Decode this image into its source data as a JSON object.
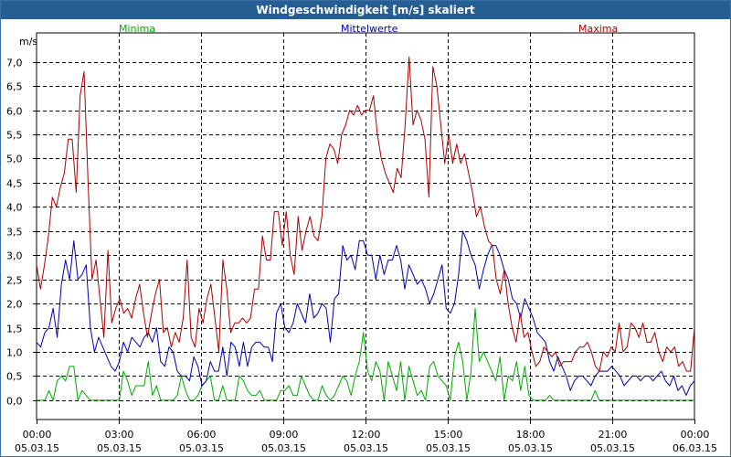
{
  "chart_data": {
    "type": "line",
    "title": "Windgeschwindigkeit [m/s] skaliert",
    "ylabel": "m/s",
    "xlabel": "",
    "ylim": [
      -0.4,
      7.6
    ],
    "yticks": [
      0.0,
      0.5,
      1.0,
      1.5,
      2.0,
      2.5,
      3.0,
      3.5,
      4.0,
      4.5,
      5.0,
      5.5,
      6.0,
      6.5,
      7.0
    ],
    "ytick_labels": [
      "0,0",
      "0,5",
      "1,0",
      "1,5",
      "2,0",
      "2,5",
      "3,0",
      "3,5",
      "4,0",
      "4,5",
      "5,0",
      "5,5",
      "6,0",
      "6,5",
      "7,0"
    ],
    "xlim": [
      0,
      24
    ],
    "xticks": [
      {
        "hour": 0,
        "time": "00:00",
        "date": "05.03.15"
      },
      {
        "hour": 3,
        "time": "03:00",
        "date": "05.03.15"
      },
      {
        "hour": 6,
        "time": "06:00",
        "date": "05.03.15"
      },
      {
        "hour": 9,
        "time": "09:00",
        "date": "05.03.15"
      },
      {
        "hour": 12,
        "time": "12:00",
        "date": "05.03.15"
      },
      {
        "hour": 15,
        "time": "15:00",
        "date": "05.03.15"
      },
      {
        "hour": 18,
        "time": "18:00",
        "date": "05.03.15"
      },
      {
        "hour": 21,
        "time": "21:00",
        "date": "05.03.15"
      },
      {
        "hour": 24,
        "time": "00:00",
        "date": "06.03.15"
      }
    ],
    "grid": true,
    "series": [
      {
        "name": "Minima",
        "color": "#00aa00",
        "values": [
          0.0,
          0.0,
          0.0,
          0.2,
          0.0,
          0.4,
          0.5,
          0.4,
          0.7,
          0.7,
          0.0,
          0.2,
          0.1,
          0.0,
          0.0,
          0.0,
          0.0,
          0.0,
          0.0,
          0.0,
          0.0,
          0.6,
          0.4,
          0.1,
          0.3,
          0.3,
          0.3,
          0.8,
          0.1,
          0.3,
          0.0,
          0.0,
          0.0,
          0.0,
          0.1,
          0.5,
          0.2,
          0.0,
          0.0,
          0.1,
          0.3,
          0.4,
          0.5,
          0.0,
          0.0,
          0.3,
          0.0,
          0.0,
          0.0,
          0.5,
          0.4,
          0.2,
          0.1,
          0.1,
          0.2,
          0.0,
          0.0,
          0.0,
          0.0,
          0.2,
          0.2,
          0.3,
          0.1,
          0.1,
          0.5,
          0.3,
          0.1,
          0.0,
          0.0,
          0.3,
          0.1,
          0.0,
          0.1,
          0.3,
          0.5,
          0.4,
          0.1,
          0.5,
          0.8,
          1.4,
          0.6,
          0.4,
          0.8,
          0.6,
          0.0,
          0.8,
          0.5,
          0.2,
          0.8,
          0.0,
          0.7,
          0.4,
          0.1,
          0.2,
          0.0,
          0.7,
          0.8,
          0.5,
          0.4,
          0.3,
          0.0,
          0.9,
          1.2,
          0.8,
          0.0,
          0.6,
          1.9,
          0.8,
          1.0,
          0.8,
          0.6,
          0.4,
          0.9,
          0.0,
          0.5,
          0.4,
          0.8,
          0.2,
          0.7,
          0.1,
          0.0,
          0.0,
          0.0,
          0.0,
          0.1,
          0.0,
          0.0,
          0.0,
          0.0,
          0.0,
          0.0,
          0.0,
          0.0,
          0.0,
          0.0,
          0.2,
          0.0,
          0.0,
          0.0,
          0.0,
          0.0,
          0.0,
          0.0,
          0.0,
          0.0,
          0.0,
          0.0,
          0.0,
          0.0,
          0.0,
          0.0,
          0.0,
          0.0,
          0.0,
          0.0,
          0.0,
          0.0,
          0.0,
          0.0,
          0.0
        ]
      },
      {
        "name": "Mittelwerte",
        "color": "#0000aa",
        "values": [
          1.2,
          1.1,
          1.4,
          1.5,
          1.9,
          1.3,
          2.4,
          2.9,
          2.5,
          3.3,
          2.5,
          2.6,
          2.8,
          1.5,
          1.0,
          1.3,
          1.1,
          0.9,
          0.7,
          0.6,
          0.8,
          1.2,
          1.0,
          1.3,
          1.2,
          1.1,
          1.3,
          1.4,
          1.2,
          1.5,
          0.8,
          0.7,
          1.1,
          1.0,
          0.6,
          0.5,
          0.5,
          0.4,
          0.9,
          0.7,
          0.3,
          0.4,
          0.8,
          0.6,
          0.6,
          1.1,
          0.5,
          1.2,
          1.1,
          0.7,
          1.2,
          0.7,
          1.1,
          1.2,
          1.2,
          1.1,
          1.1,
          0.8,
          1.8,
          2.0,
          1.5,
          1.4,
          1.6,
          2.0,
          1.8,
          1.6,
          2.2,
          1.7,
          1.8,
          2.0,
          1.9,
          1.2,
          2.1,
          2.2,
          3.2,
          2.9,
          3.0,
          2.7,
          3.3,
          3.3,
          3.0,
          3.0,
          2.5,
          3.0,
          2.6,
          2.9,
          2.9,
          3.2,
          2.9,
          2.3,
          2.8,
          2.6,
          2.4,
          2.5,
          2.3,
          2.0,
          2.2,
          2.5,
          2.8,
          1.9,
          1.8,
          2.0,
          2.6,
          3.5,
          3.3,
          3.0,
          2.8,
          2.3,
          2.7,
          3.0,
          3.2,
          3.2,
          3.0,
          2.7,
          2.5,
          2.1,
          2.0,
          1.7,
          2.1,
          1.9,
          1.7,
          1.4,
          1.3,
          1.2,
          0.8,
          0.6,
          0.9,
          0.7,
          0.5,
          0.2,
          0.4,
          0.5,
          0.5,
          0.4,
          0.3,
          0.5,
          0.6,
          0.6,
          0.6,
          0.7,
          0.6,
          0.5,
          0.3,
          0.4,
          0.5,
          0.5,
          0.4,
          0.5,
          0.5,
          0.4,
          0.5,
          0.6,
          0.4,
          0.3,
          0.5,
          0.2,
          0.3,
          0.1,
          0.3,
          0.4
        ]
      },
      {
        "name": "Maxima",
        "color": "#aa0000",
        "values": [
          2.8,
          2.3,
          2.8,
          3.4,
          4.2,
          4.0,
          4.4,
          4.7,
          5.4,
          5.4,
          4.3,
          6.3,
          6.8,
          4.5,
          2.5,
          2.9,
          2.1,
          1.3,
          3.1,
          1.6,
          1.9,
          2.1,
          1.8,
          1.9,
          1.7,
          2.1,
          2.4,
          1.8,
          1.3,
          1.8,
          2.2,
          2.5,
          1.4,
          1.5,
          1.1,
          1.4,
          1.2,
          1.7,
          2.9,
          1.3,
          1.1,
          1.9,
          1.6,
          2.1,
          2.4,
          1.7,
          1.0,
          2.9,
          2.3,
          1.4,
          1.6,
          1.6,
          1.7,
          1.6,
          1.7,
          2.3,
          2.3,
          3.4,
          2.9,
          2.9,
          3.9,
          3.9,
          3.2,
          3.9,
          3.0,
          2.6,
          3.8,
          3.1,
          3.5,
          3.8,
          3.4,
          3.3,
          3.8,
          5.0,
          5.3,
          5.2,
          4.9,
          5.5,
          5.7,
          6.0,
          5.9,
          6.1,
          5.9,
          6.0,
          6.0,
          6.3,
          5.5,
          5.0,
          4.7,
          4.5,
          4.3,
          4.8,
          4.6,
          5.7,
          7.1,
          5.7,
          6.0,
          5.8,
          5.4,
          4.2,
          6.9,
          6.5,
          5.7,
          4.9,
          5.5,
          4.9,
          5.3,
          4.9,
          5.1,
          4.7,
          4.3,
          3.8,
          4.0,
          3.6,
          3.3,
          3.2,
          2.5,
          2.2,
          2.7,
          2.0,
          1.5,
          1.2,
          1.8,
          1.3,
          1.4,
          1.0,
          0.7,
          0.8,
          1.1,
          1.0,
          0.9,
          1.0,
          0.7,
          0.8,
          0.8,
          0.8,
          1.0,
          1.1,
          1.1,
          1.2,
          1.0,
          0.7,
          0.6,
          1.0,
          0.9,
          1.1,
          1.0,
          1.6,
          1.0,
          1.1,
          1.6,
          1.5,
          1.3,
          1.6,
          1.2,
          1.2,
          1.4,
          1.0,
          0.8,
          1.1,
          1.0,
          1.1,
          0.7,
          0.8,
          0.6,
          0.6,
          1.5
        ]
      }
    ]
  }
}
